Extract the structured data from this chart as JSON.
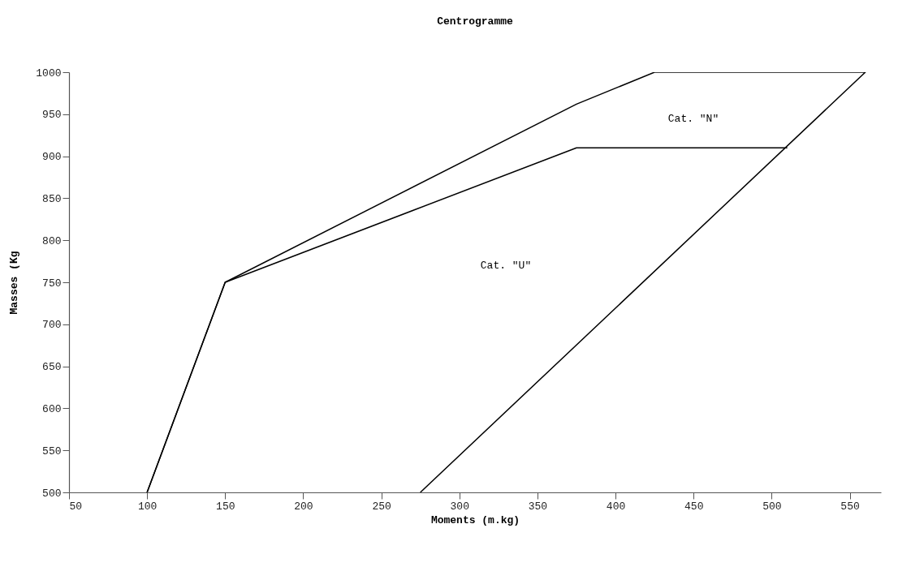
{
  "chart_data": {
    "type": "line",
    "title": "Centrogramme",
    "xlabel": "Moments (m.kg)",
    "ylabel": "Masses (Kg",
    "xlim": [
      50,
      570
    ],
    "ylim": [
      500,
      1000
    ],
    "xticks": [
      50,
      100,
      150,
      200,
      250,
      300,
      350,
      400,
      450,
      500,
      550
    ],
    "yticks": [
      500,
      550,
      600,
      650,
      700,
      750,
      800,
      850,
      900,
      950,
      1000
    ],
    "grid": false,
    "marker": "none",
    "line_style": "solid",
    "series": [
      {
        "color": "#000000",
        "x": [
          275,
          560,
          425,
          375,
          150,
          100
        ],
        "values": [
          500,
          1000,
          1000,
          962,
          750,
          500
        ]
      },
      {
        "color": "#000000",
        "x": [
          100,
          150,
          375,
          510
        ],
        "values": [
          500,
          750,
          910,
          910
        ]
      }
    ],
    "annotations": [
      "Cat. \"N\"",
      "Cat. \"U\""
    ]
  }
}
